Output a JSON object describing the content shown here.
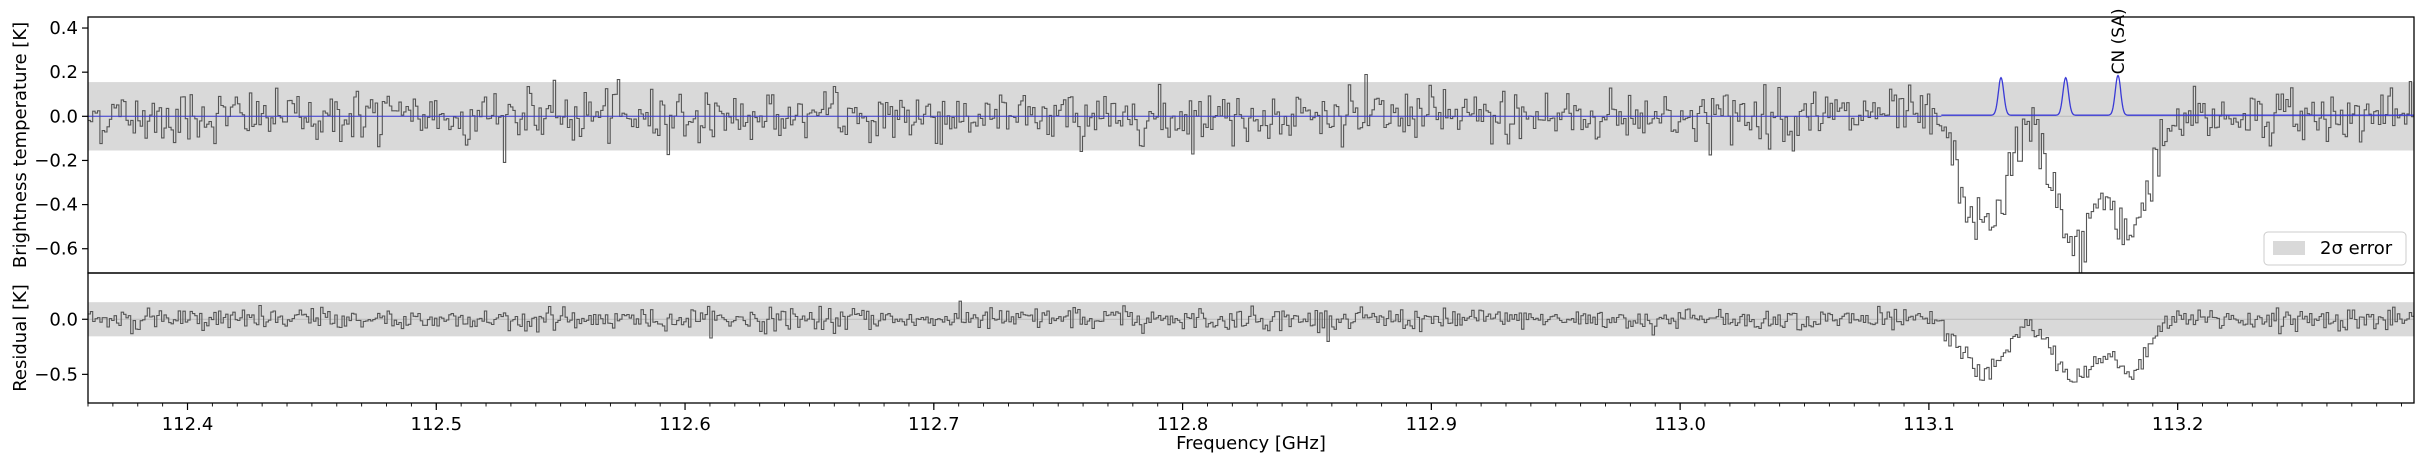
{
  "chart_data": [
    {
      "type": "line",
      "panel": "spectrum",
      "ylabel": "Brightness temperature [K]",
      "xlabel": "",
      "xlim": [
        112.36,
        113.295
      ],
      "ylim": [
        -0.71,
        0.45
      ],
      "yticks": [
        0.4,
        0.2,
        0.0,
        -0.2,
        -0.4,
        -0.6
      ],
      "ytick_labels": [
        "0.4",
        "0.2",
        "0.0",
        "−0.2",
        "−0.4",
        "−0.6"
      ],
      "error_band": {
        "lower": -0.155,
        "upper": 0.155,
        "label": "2σ error",
        "color": "#d9d9d9"
      },
      "legend": {
        "position": "lower-right",
        "entries": [
          "2σ error"
        ]
      },
      "observed_color": "#555555",
      "model_color": "#3a3ad6",
      "model_lines": [
        {
          "x": 113.129,
          "peak": 0.17
        },
        {
          "x": 113.155,
          "peak": 0.17
        },
        {
          "x": 113.176,
          "peak": 0.18
        }
      ],
      "model_baseline": 0.005,
      "absorption_features": [
        {
          "x": 113.123,
          "depth": -0.5
        },
        {
          "x": 113.158,
          "depth": -0.6
        },
        {
          "x": 113.18,
          "depth": -0.52
        }
      ],
      "noise_rms": 0.06,
      "annotation": {
        "text": "CN (SA)",
        "x": 113.176
      }
    },
    {
      "type": "line",
      "panel": "residual",
      "ylabel": "Residual [K]",
      "xlabel": "Frequency [GHz]",
      "xlim": [
        112.36,
        113.295
      ],
      "ylim": [
        -0.76,
        0.42
      ],
      "yticks": [
        0.0,
        -0.5
      ],
      "ytick_labels": [
        "0.0",
        "−0.5"
      ],
      "xticks": [
        112.4,
        112.5,
        112.6,
        112.7,
        112.8,
        112.9,
        113.0,
        113.1,
        113.2
      ],
      "xtick_labels": [
        "112.4",
        "112.5",
        "112.6",
        "112.7",
        "112.8",
        "112.9",
        "113.0",
        "113.1",
        "113.2"
      ],
      "error_band": {
        "lower": -0.155,
        "upper": 0.155,
        "color": "#d9d9d9"
      },
      "noise_rms": 0.05
    }
  ]
}
